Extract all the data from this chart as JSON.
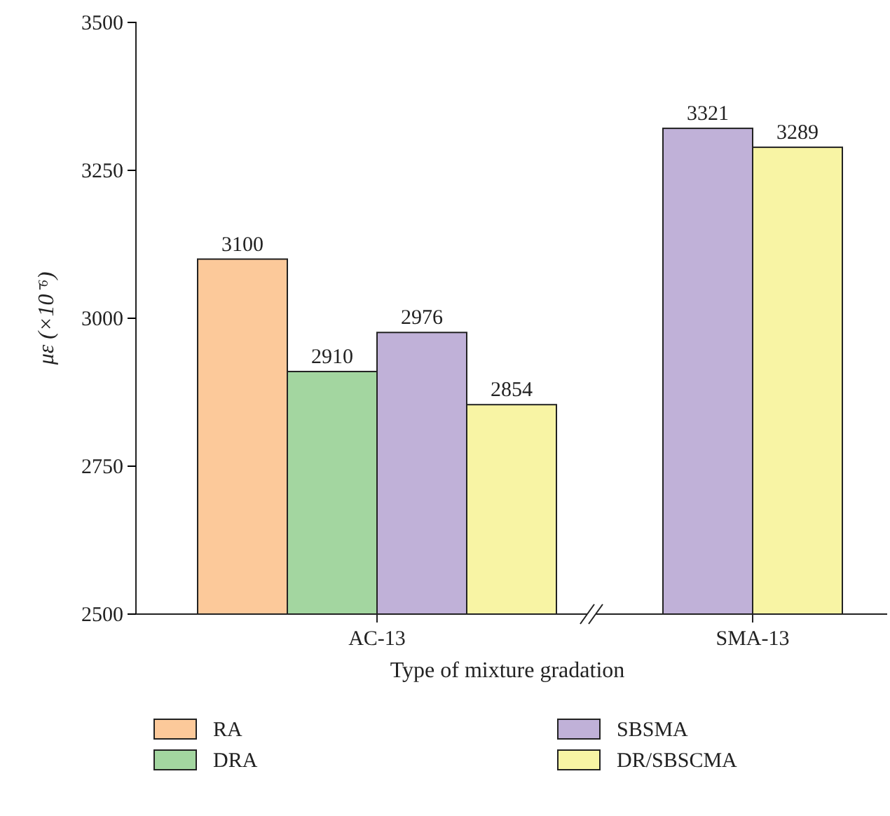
{
  "chart_data": {
    "type": "bar",
    "xlabel": "Type of mixture gradation",
    "ylabel": "με (×10⁻⁶)",
    "categories": [
      "AC-13",
      "SMA-13"
    ],
    "series": [
      {
        "name": "RA",
        "color": "#fcc99a",
        "values": [
          3100,
          null
        ]
      },
      {
        "name": "DRA",
        "color": "#a3d6a0",
        "values": [
          2910,
          null
        ]
      },
      {
        "name": "SBSMA",
        "color": "#c0b1d8",
        "values": [
          2976,
          3321
        ]
      },
      {
        "name": "DR/SBSCMA",
        "color": "#f8f4a4",
        "values": [
          2854,
          3289
        ]
      }
    ],
    "ylim": [
      2500,
      3500
    ],
    "yticks": [
      2500,
      2750,
      3000,
      3250,
      3500
    ],
    "data_labels": true,
    "legend": "bottom"
  }
}
